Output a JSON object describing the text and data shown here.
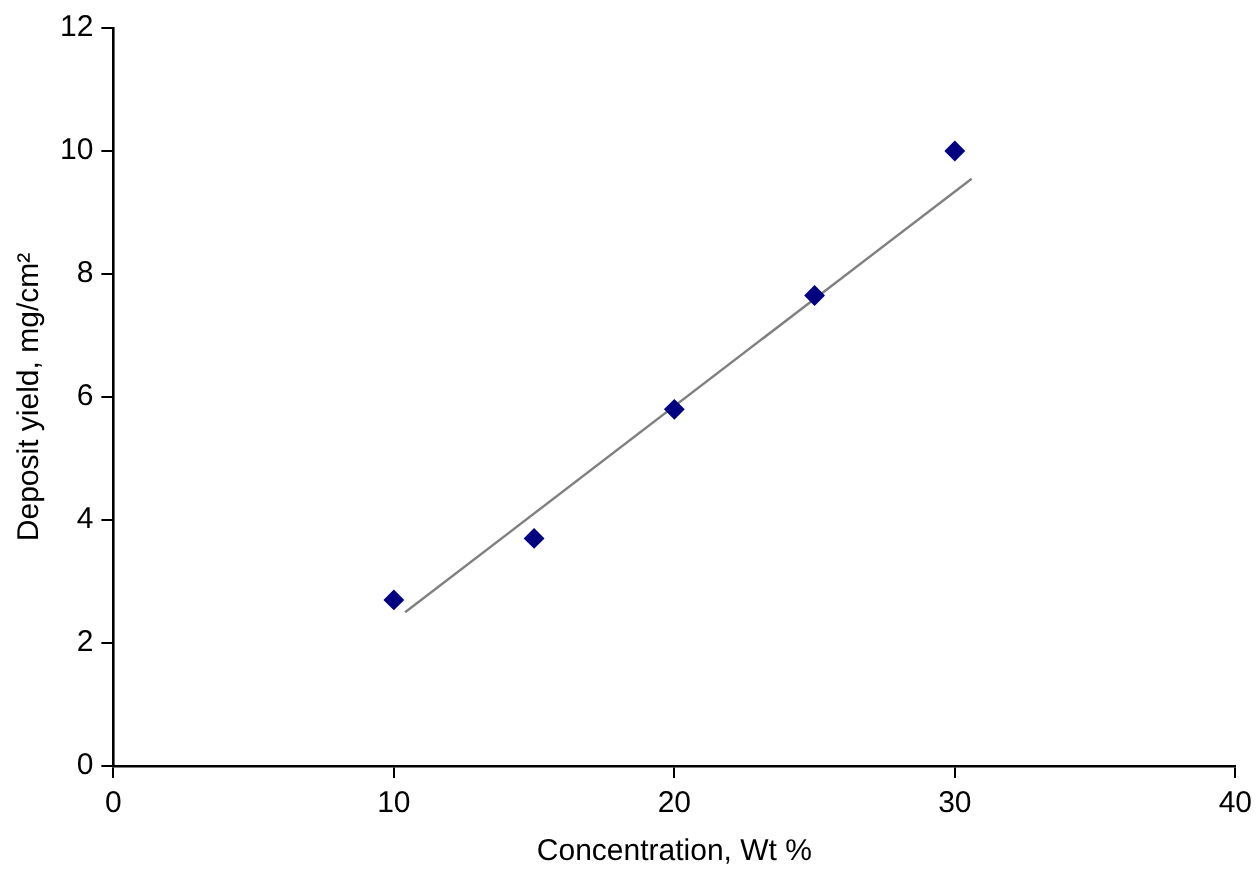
{
  "chart_data": {
    "type": "scatter",
    "xlabel": "Concentration, Wt %",
    "ylabel": "Deposit yield, mg/cm²",
    "x": [
      10,
      15,
      20,
      25,
      30
    ],
    "series": [
      {
        "type": "scatter",
        "color": "#000080",
        "marker": "diamond",
        "values": [
          2.7,
          3.7,
          5.8,
          7.65,
          10.0
        ]
      },
      {
        "type": "line",
        "color": "#808080",
        "marker": "none",
        "x": [
          10.4,
          30.6
        ],
        "values": [
          2.5,
          9.55
        ]
      }
    ],
    "xlim": [
      0,
      40
    ],
    "xticks": [
      0,
      10,
      20,
      30,
      40
    ],
    "ylim": [
      0,
      12
    ],
    "yticks": [
      0,
      2,
      4,
      6,
      8,
      10,
      12
    ],
    "grid": false,
    "legend": false
  }
}
